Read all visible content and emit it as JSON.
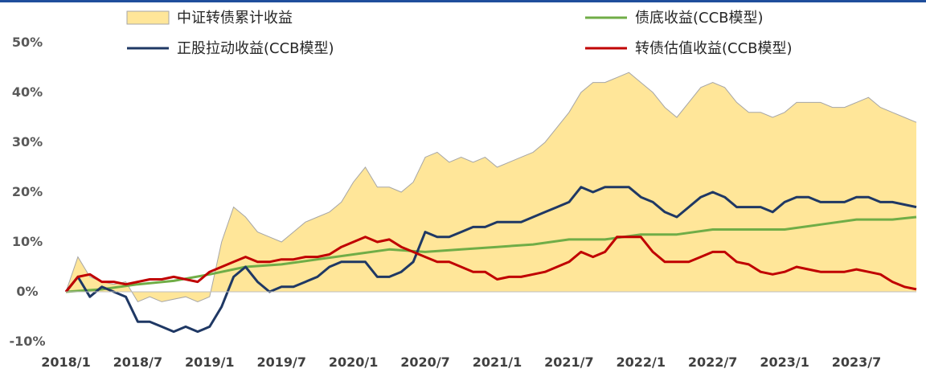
{
  "chart_data": {
    "type": "line",
    "title": "",
    "xlabel": "",
    "ylabel": "",
    "x_start": "2018-01",
    "x_end": "2023-12",
    "x_ticks": [
      "2018/1",
      "2018/7",
      "2019/1",
      "2019/7",
      "2020/1",
      "2020/7",
      "2021/1",
      "2021/7",
      "2022/1",
      "2022/7",
      "2023/1",
      "2023/7"
    ],
    "y_ticks": [
      "50%",
      "40%",
      "30%",
      "20%",
      "10%",
      "0%",
      "-10%"
    ],
    "ylim": [
      -10,
      50
    ],
    "grid": false,
    "legend_position": "top",
    "series": [
      {
        "name": "中证转债累计收益",
        "kind": "area",
        "color": "#ffe699",
        "edge": "#a6a6a6",
        "points": [
          [
            "2018-01",
            0
          ],
          [
            "2018-02",
            7
          ],
          [
            "2018-03",
            3
          ],
          [
            "2018-04",
            2
          ],
          [
            "2018-05",
            1.5
          ],
          [
            "2018-06",
            2
          ],
          [
            "2018-07",
            -2
          ],
          [
            "2018-08",
            -1
          ],
          [
            "2018-09",
            -2
          ],
          [
            "2018-10",
            -1.5
          ],
          [
            "2018-11",
            -1
          ],
          [
            "2018-12",
            -2
          ],
          [
            "2019-01",
            -1
          ],
          [
            "2019-02",
            10
          ],
          [
            "2019-03",
            17
          ],
          [
            "2019-04",
            15
          ],
          [
            "2019-05",
            12
          ],
          [
            "2019-06",
            11
          ],
          [
            "2019-07",
            10
          ],
          [
            "2019-08",
            12
          ],
          [
            "2019-09",
            14
          ],
          [
            "2019-10",
            15
          ],
          [
            "2019-11",
            16
          ],
          [
            "2019-12",
            18
          ],
          [
            "2020-01",
            22
          ],
          [
            "2020-02",
            25
          ],
          [
            "2020-03",
            21
          ],
          [
            "2020-04",
            21
          ],
          [
            "2020-05",
            20
          ],
          [
            "2020-06",
            22
          ],
          [
            "2020-07",
            27
          ],
          [
            "2020-08",
            28
          ],
          [
            "2020-09",
            26
          ],
          [
            "2020-10",
            27
          ],
          [
            "2020-11",
            26
          ],
          [
            "2020-12",
            27
          ],
          [
            "2021-01",
            25
          ],
          [
            "2021-02",
            26
          ],
          [
            "2021-03",
            27
          ],
          [
            "2021-04",
            28
          ],
          [
            "2021-05",
            30
          ],
          [
            "2021-06",
            33
          ],
          [
            "2021-07",
            36
          ],
          [
            "2021-08",
            40
          ],
          [
            "2021-09",
            42
          ],
          [
            "2021-10",
            42
          ],
          [
            "2021-11",
            43
          ],
          [
            "2021-12",
            44
          ],
          [
            "2022-01",
            42
          ],
          [
            "2022-02",
            40
          ],
          [
            "2022-03",
            37
          ],
          [
            "2022-04",
            35
          ],
          [
            "2022-05",
            38
          ],
          [
            "2022-06",
            41
          ],
          [
            "2022-07",
            42
          ],
          [
            "2022-08",
            41
          ],
          [
            "2022-09",
            38
          ],
          [
            "2022-10",
            36
          ],
          [
            "2022-11",
            36
          ],
          [
            "2022-12",
            35
          ],
          [
            "2023-01",
            36
          ],
          [
            "2023-02",
            38
          ],
          [
            "2023-03",
            38
          ],
          [
            "2023-04",
            38
          ],
          [
            "2023-05",
            37
          ],
          [
            "2023-06",
            37
          ],
          [
            "2023-07",
            38
          ],
          [
            "2023-08",
            39
          ],
          [
            "2023-09",
            37
          ],
          [
            "2023-10",
            36
          ],
          [
            "2023-11",
            35
          ],
          [
            "2023-12",
            34
          ]
        ]
      },
      {
        "name": "债底收益(CCB模型)",
        "kind": "line",
        "color": "#70ad47",
        "points": [
          [
            "2018-01",
            0
          ],
          [
            "2018-04",
            0.5
          ],
          [
            "2018-07",
            1.5
          ],
          [
            "2018-10",
            2.2
          ],
          [
            "2019-01",
            3.5
          ],
          [
            "2019-04",
            5
          ],
          [
            "2019-07",
            5.5
          ],
          [
            "2019-10",
            6.5
          ],
          [
            "2020-01",
            7.5
          ],
          [
            "2020-04",
            8.5
          ],
          [
            "2020-07",
            8
          ],
          [
            "2020-10",
            8.5
          ],
          [
            "2021-01",
            9
          ],
          [
            "2021-04",
            9.5
          ],
          [
            "2021-07",
            10.5
          ],
          [
            "2021-10",
            10.5
          ],
          [
            "2022-01",
            11.5
          ],
          [
            "2022-04",
            11.5
          ],
          [
            "2022-07",
            12.5
          ],
          [
            "2022-10",
            12.5
          ],
          [
            "2023-01",
            12.5
          ],
          [
            "2023-04",
            13.5
          ],
          [
            "2023-07",
            14.5
          ],
          [
            "2023-10",
            14.5
          ],
          [
            "2023-12",
            15
          ]
        ]
      },
      {
        "name": "正股拉动收益(CCB模型)",
        "kind": "line",
        "color": "#1f3864",
        "points": [
          [
            "2018-01",
            0
          ],
          [
            "2018-02",
            3
          ],
          [
            "2018-03",
            -1
          ],
          [
            "2018-04",
            1
          ],
          [
            "2018-05",
            0
          ],
          [
            "2018-06",
            -1
          ],
          [
            "2018-07",
            -6
          ],
          [
            "2018-08",
            -6
          ],
          [
            "2018-09",
            -7
          ],
          [
            "2018-10",
            -8
          ],
          [
            "2018-11",
            -7
          ],
          [
            "2018-12",
            -8
          ],
          [
            "2019-01",
            -7
          ],
          [
            "2019-02",
            -3
          ],
          [
            "2019-03",
            3
          ],
          [
            "2019-04",
            5
          ],
          [
            "2019-05",
            2
          ],
          [
            "2019-06",
            0
          ],
          [
            "2019-07",
            1
          ],
          [
            "2019-08",
            1
          ],
          [
            "2019-09",
            2
          ],
          [
            "2019-10",
            3
          ],
          [
            "2019-11",
            5
          ],
          [
            "2019-12",
            6
          ],
          [
            "2020-01",
            6
          ],
          [
            "2020-02",
            6
          ],
          [
            "2020-03",
            3
          ],
          [
            "2020-04",
            3
          ],
          [
            "2020-05",
            4
          ],
          [
            "2020-06",
            6
          ],
          [
            "2020-07",
            12
          ],
          [
            "2020-08",
            11
          ],
          [
            "2020-09",
            11
          ],
          [
            "2020-10",
            12
          ],
          [
            "2020-11",
            13
          ],
          [
            "2020-12",
            13
          ],
          [
            "2021-01",
            14
          ],
          [
            "2021-02",
            14
          ],
          [
            "2021-03",
            14
          ],
          [
            "2021-04",
            15
          ],
          [
            "2021-05",
            16
          ],
          [
            "2021-06",
            17
          ],
          [
            "2021-07",
            18
          ],
          [
            "2021-08",
            21
          ],
          [
            "2021-09",
            20
          ],
          [
            "2021-10",
            21
          ],
          [
            "2021-11",
            21
          ],
          [
            "2021-12",
            21
          ],
          [
            "2022-01",
            19
          ],
          [
            "2022-02",
            18
          ],
          [
            "2022-03",
            16
          ],
          [
            "2022-04",
            15
          ],
          [
            "2022-05",
            17
          ],
          [
            "2022-06",
            19
          ],
          [
            "2022-07",
            20
          ],
          [
            "2022-08",
            19
          ],
          [
            "2022-09",
            17
          ],
          [
            "2022-10",
            17
          ],
          [
            "2022-11",
            17
          ],
          [
            "2022-12",
            16
          ],
          [
            "2023-01",
            18
          ],
          [
            "2023-02",
            19
          ],
          [
            "2023-03",
            19
          ],
          [
            "2023-04",
            18
          ],
          [
            "2023-05",
            18
          ],
          [
            "2023-06",
            18
          ],
          [
            "2023-07",
            19
          ],
          [
            "2023-08",
            19
          ],
          [
            "2023-09",
            18
          ],
          [
            "2023-10",
            18
          ],
          [
            "2023-11",
            17.5
          ],
          [
            "2023-12",
            17
          ]
        ]
      },
      {
        "name": "转债估值收益(CCB模型)",
        "kind": "line",
        "color": "#c00000",
        "points": [
          [
            "2018-01",
            0
          ],
          [
            "2018-02",
            3
          ],
          [
            "2018-03",
            3.5
          ],
          [
            "2018-04",
            2
          ],
          [
            "2018-05",
            2
          ],
          [
            "2018-06",
            1.5
          ],
          [
            "2018-07",
            2
          ],
          [
            "2018-08",
            2.5
          ],
          [
            "2018-09",
            2.5
          ],
          [
            "2018-10",
            3
          ],
          [
            "2018-11",
            2.5
          ],
          [
            "2018-12",
            2
          ],
          [
            "2019-01",
            4
          ],
          [
            "2019-02",
            5
          ],
          [
            "2019-03",
            6
          ],
          [
            "2019-04",
            7
          ],
          [
            "2019-05",
            6
          ],
          [
            "2019-06",
            6
          ],
          [
            "2019-07",
            6.5
          ],
          [
            "2019-08",
            6.5
          ],
          [
            "2019-09",
            7
          ],
          [
            "2019-10",
            7
          ],
          [
            "2019-11",
            7.5
          ],
          [
            "2019-12",
            9
          ],
          [
            "2020-01",
            10
          ],
          [
            "2020-02",
            11
          ],
          [
            "2020-03",
            10
          ],
          [
            "2020-04",
            10.5
          ],
          [
            "2020-05",
            9
          ],
          [
            "2020-06",
            8
          ],
          [
            "2020-07",
            7
          ],
          [
            "2020-08",
            6
          ],
          [
            "2020-09",
            6
          ],
          [
            "2020-10",
            5
          ],
          [
            "2020-11",
            4
          ],
          [
            "2020-12",
            4
          ],
          [
            "2021-01",
            2.5
          ],
          [
            "2021-02",
            3
          ],
          [
            "2021-03",
            3
          ],
          [
            "2021-04",
            3.5
          ],
          [
            "2021-05",
            4
          ],
          [
            "2021-06",
            5
          ],
          [
            "2021-07",
            6
          ],
          [
            "2021-08",
            8
          ],
          [
            "2021-09",
            7
          ],
          [
            "2021-10",
            8
          ],
          [
            "2021-11",
            11
          ],
          [
            "2021-12",
            11
          ],
          [
            "2022-01",
            11
          ],
          [
            "2022-02",
            8
          ],
          [
            "2022-03",
            6
          ],
          [
            "2022-04",
            6
          ],
          [
            "2022-05",
            6
          ],
          [
            "2022-06",
            7
          ],
          [
            "2022-07",
            8
          ],
          [
            "2022-08",
            8
          ],
          [
            "2022-09",
            6
          ],
          [
            "2022-10",
            5.5
          ],
          [
            "2022-11",
            4
          ],
          [
            "2022-12",
            3.5
          ],
          [
            "2023-01",
            4
          ],
          [
            "2023-02",
            5
          ],
          [
            "2023-03",
            4.5
          ],
          [
            "2023-04",
            4
          ],
          [
            "2023-05",
            4
          ],
          [
            "2023-06",
            4
          ],
          [
            "2023-07",
            4.5
          ],
          [
            "2023-08",
            4
          ],
          [
            "2023-09",
            3.5
          ],
          [
            "2023-10",
            2
          ],
          [
            "2023-11",
            1
          ],
          [
            "2023-12",
            0.5
          ]
        ]
      }
    ]
  }
}
